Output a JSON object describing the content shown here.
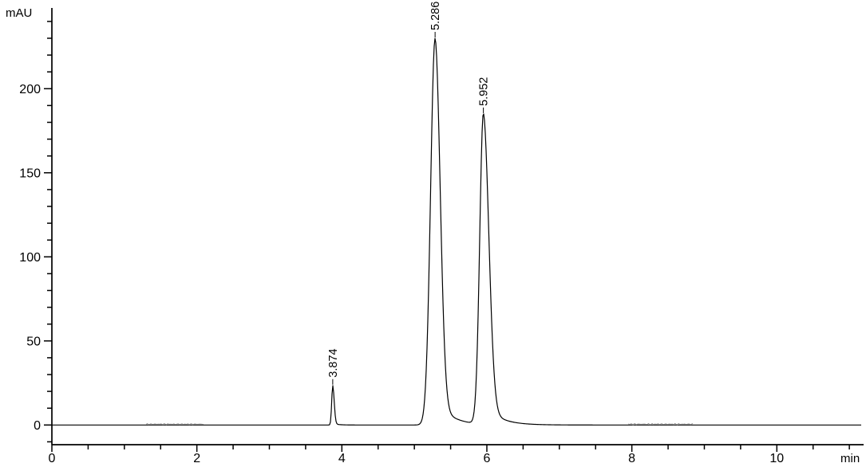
{
  "window": {
    "background_color": "#ffffff",
    "foreground_color": "#000000"
  },
  "chart_data": {
    "type": "line",
    "title": "",
    "ylabel": "mAU",
    "xlabel": "min",
    "legend": "none",
    "grid": "off",
    "x_axis": {
      "min": 0,
      "max": 11.2,
      "major_ticks": [
        0,
        2,
        4,
        6,
        8,
        10
      ],
      "major_tick_labels": [
        "0",
        "2",
        "4",
        "6",
        "8",
        "10"
      ],
      "minor_tick_interval": 0.5,
      "minor_tick_max": 11.0
    },
    "y_axis": {
      "min": -11,
      "max": 248,
      "major_ticks": [
        0,
        50,
        100,
        150,
        200
      ],
      "major_tick_labels": [
        "0",
        "50",
        "100",
        "150",
        "200"
      ],
      "minor_tick_interval": 10,
      "minor_tick_min": -10,
      "minor_tick_max": 240
    },
    "baseline_mAU": 0,
    "peaks": [
      {
        "label": "3.874",
        "retention_time_min": 3.874,
        "height_mAU": 23.5,
        "sigma_left_min": 0.014,
        "sigma_right_min": 0.02,
        "tail_fraction": 0.05,
        "tail_tau_min": 0.06
      },
      {
        "label": "5.286",
        "retention_time_min": 5.286,
        "height_mAU": 230,
        "sigma_left_min": 0.062,
        "sigma_right_min": 0.07,
        "tail_fraction": 0.07,
        "tail_tau_min": 0.2
      },
      {
        "label": "5.952",
        "retention_time_min": 5.952,
        "height_mAU": 185,
        "sigma_left_min": 0.05,
        "sigma_right_min": 0.075,
        "tail_fraction": 0.07,
        "tail_tau_min": 0.2
      }
    ],
    "noise_regions": [
      {
        "start_min": 1.3,
        "end_min": 2.1,
        "amplitude_mAU": 0.6
      },
      {
        "start_min": 7.95,
        "end_min": 8.85,
        "amplitude_mAU": 0.7
      }
    ],
    "trace_end_min": 11.17,
    "line_color": "#000000",
    "noise_color": "#8a8a8a",
    "background_color": "#ffffff"
  }
}
